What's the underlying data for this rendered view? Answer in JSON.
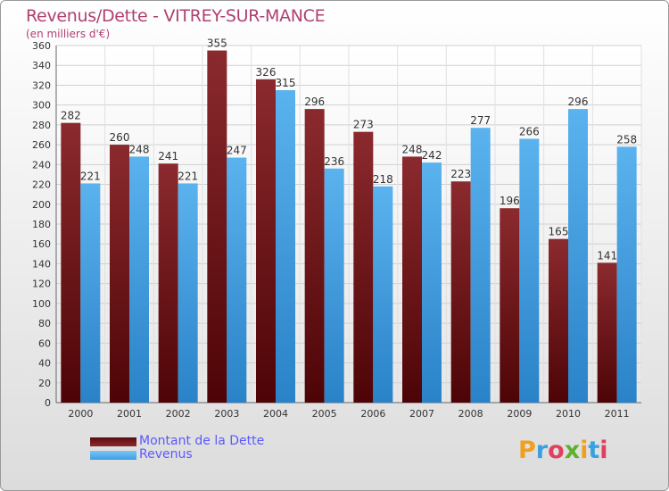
{
  "header": {
    "title": "Revenus/Dette - VITREY-SUR-MANCE",
    "subtitle": "(en milliers d'€)"
  },
  "chart_data": {
    "type": "bar",
    "title": "Revenus/Dette - VITREY-SUR-MANCE",
    "subtitle": "(en milliers d'€)",
    "categories": [
      "2000",
      "2001",
      "2002",
      "2003",
      "2004",
      "2005",
      "2006",
      "2007",
      "2008",
      "2009",
      "2010",
      "2011"
    ],
    "series": [
      {
        "name": "Montant de la Dette",
        "values": [
          282,
          260,
          241,
          355,
          326,
          296,
          273,
          248,
          223,
          196,
          165,
          141
        ],
        "color": "#7a1f22"
      },
      {
        "name": "Revenus",
        "values": [
          221,
          248,
          221,
          247,
          315,
          236,
          218,
          242,
          277,
          266,
          296,
          258
        ],
        "color": "#3d9ee6"
      }
    ],
    "ylim": [
      0,
      360
    ],
    "yticks": [
      0,
      20,
      40,
      60,
      80,
      100,
      120,
      140,
      160,
      180,
      200,
      220,
      240,
      260,
      280,
      300,
      320,
      340,
      360
    ],
    "grid": true,
    "legend_position": "bottom-left"
  },
  "legend": {
    "items": [
      {
        "label": "Montant de la Dette",
        "color": "#5a0d10"
      },
      {
        "label": "Revenus",
        "color": "#3d9ee6"
      }
    ]
  },
  "logo": {
    "letters": [
      "P",
      "r",
      "o",
      "x",
      "i",
      "t",
      "i"
    ],
    "colors": [
      "#f0a020",
      "#3aa0e0",
      "#e04060",
      "#60b030",
      "#f0a020",
      "#3aa0e0",
      "#e04060"
    ]
  }
}
